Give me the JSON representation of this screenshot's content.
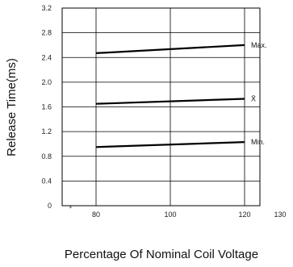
{
  "chart_data": {
    "type": "line",
    "xlabel": "Percentage Of Nominal Coil Voltage",
    "ylabel": "Release Time(ms)",
    "xlim": [
      80,
      130
    ],
    "ylim": [
      0,
      3.2
    ],
    "x_axis_break": true,
    "x_ticks": [
      80,
      100,
      120,
      130
    ],
    "y_ticks": [
      0,
      0.4,
      0.8,
      1.2,
      1.6,
      2.0,
      2.4,
      2.8,
      3.2
    ],
    "x_tick_labels": [
      "80",
      "100",
      "120",
      "130"
    ],
    "y_tick_labels": [
      "0",
      "0.4",
      "0.8",
      "1.2",
      "1.6",
      "2.0",
      "2.4",
      "2.8",
      "3.2"
    ],
    "grid": true,
    "break_symbol": "⸗",
    "series": [
      {
        "name": "Max.",
        "x": [
          80,
          120
        ],
        "y": [
          2.47,
          2.6
        ]
      },
      {
        "name": "X̄",
        "x": [
          80,
          120
        ],
        "y": [
          1.65,
          1.73
        ]
      },
      {
        "name": "Min.",
        "x": [
          80,
          120
        ],
        "y": [
          0.95,
          1.03
        ]
      }
    ]
  }
}
